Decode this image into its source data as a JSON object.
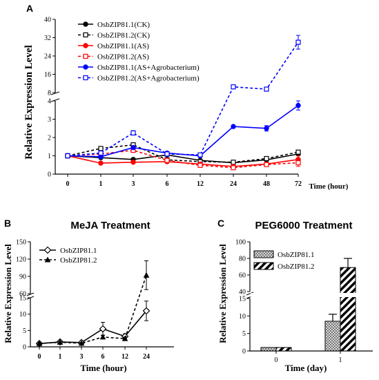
{
  "chart_data": [
    {
      "panel_label": "A",
      "type": "line",
      "title": "",
      "xlabel": "Time (hour)",
      "ylabel": "Relative Expression Level",
      "categories": [
        "0",
        "1",
        "3",
        "6",
        "12",
        "24",
        "48",
        "72"
      ],
      "yticks_lower": [
        "0",
        "1",
        "2",
        "3",
        "4"
      ],
      "yticks_upper": [
        "8",
        "16",
        "24",
        "32",
        "40"
      ],
      "y_axis_break": {
        "lower": [
          0,
          4
        ],
        "upper": [
          8,
          40
        ]
      },
      "legend_position": "top-left",
      "grid": false,
      "series": [
        {
          "name": "OsbZIP81.1(CK)",
          "color": "#000000",
          "dash": false,
          "marker": "filled-circle",
          "values": [
            1.0,
            0.9,
            0.8,
            1.05,
            0.75,
            0.62,
            0.78,
            1.1
          ],
          "errors": [
            0.1,
            0.06,
            0.05,
            0.06,
            0.05,
            0.05,
            0.05,
            0.07
          ]
        },
        {
          "name": "OsbZIP81.2(CK)",
          "color": "#000000",
          "dash": true,
          "marker": "open-square",
          "values": [
            1.0,
            1.4,
            1.6,
            0.78,
            0.68,
            0.65,
            0.85,
            1.2
          ],
          "errors": [
            0.1,
            0.08,
            0.1,
            0.07,
            0.05,
            0.05,
            0.06,
            0.07
          ]
        },
        {
          "name": "OsbZIP81.1(AS)",
          "color": "#ff0000",
          "dash": false,
          "marker": "filled-circle",
          "values": [
            1.0,
            0.6,
            0.65,
            0.68,
            0.55,
            0.42,
            0.55,
            0.8
          ],
          "errors": [
            0.1,
            0.05,
            0.05,
            0.05,
            0.06,
            0.08,
            0.1,
            0.2
          ]
        },
        {
          "name": "OsbZIP81.2(AS)",
          "color": "#ff0000",
          "dash": true,
          "marker": "open-square",
          "values": [
            1.0,
            1.1,
            1.3,
            0.75,
            0.48,
            0.35,
            0.52,
            0.62
          ],
          "errors": [
            0.1,
            0.1,
            0.1,
            0.08,
            0.05,
            0.05,
            0.08,
            0.2
          ]
        },
        {
          "name": "OsbZIP81.1(AS+Agrobacterium)",
          "color": "#0000ff",
          "dash": false,
          "marker": "filled-circle",
          "values": [
            1.0,
            0.95,
            1.45,
            1.15,
            1.0,
            2.6,
            2.5,
            3.75
          ],
          "errors": [
            0.12,
            0.1,
            0.1,
            0.08,
            0.08,
            0.05,
            0.15,
            0.25
          ]
        },
        {
          "name": "OsbZIP81.2(AS+Agrobacterium)",
          "color": "#0000ff",
          "dash": true,
          "marker": "open-square",
          "values": [
            1.0,
            1.15,
            2.25,
            1.1,
            1.05,
            10.5,
            9.5,
            30.0
          ],
          "errors": [
            0.1,
            0.1,
            0.12,
            0.08,
            0.05,
            0.4,
            0.5,
            3.0
          ]
        }
      ]
    },
    {
      "panel_label": "B",
      "type": "line",
      "title": "MeJA Treatment",
      "xlabel": "Time (hour)",
      "ylabel": "Relative Expression Level",
      "categories": [
        "0",
        "1",
        "3",
        "6",
        "12",
        "24"
      ],
      "yticks_lower": [
        "0",
        "5",
        "10",
        "15"
      ],
      "yticks_upper": [
        "60",
        "90",
        "120",
        "150"
      ],
      "y_axis_break": {
        "lower": [
          0,
          15
        ],
        "upper": [
          60,
          150
        ]
      },
      "legend_position": "top-left",
      "grid": false,
      "series": [
        {
          "name": "OsbZIP81.1",
          "color": "#000000",
          "dash": false,
          "marker": "open-diamond",
          "values": [
            1.0,
            1.5,
            1.3,
            5.5,
            3.2,
            11.0
          ],
          "errors": [
            0.2,
            0.2,
            0.2,
            2.0,
            0.8,
            3.0
          ]
        },
        {
          "name": "OsbZIP81.2",
          "color": "#000000",
          "dash": true,
          "marker": "filled-triangle",
          "values": [
            1.0,
            1.4,
            1.1,
            3.0,
            2.5,
            92.0
          ],
          "errors": [
            0.2,
            0.2,
            0.2,
            0.6,
            0.5,
            25.0
          ]
        }
      ]
    },
    {
      "panel_label": "C",
      "type": "bar",
      "title": "PEG6000 Treatment",
      "xlabel": "Time (day)",
      "ylabel": "Relative Expression Level",
      "categories": [
        "0",
        "1"
      ],
      "yticks_lower": [
        "0",
        "5",
        "10",
        "15"
      ],
      "yticks_upper": [
        "40",
        "60",
        "80",
        "100"
      ],
      "y_axis_break": {
        "lower": [
          0,
          15
        ],
        "upper": [
          40,
          100
        ]
      },
      "legend_position": "top-left",
      "grid": false,
      "series": [
        {
          "name": "OsbZIP81.1",
          "fill": "dotted",
          "values": [
            1.0,
            8.5
          ],
          "errors": [
            0,
            2.0
          ]
        },
        {
          "name": "OsbZIP81.2",
          "fill": "diagonal-stripes",
          "values": [
            1.0,
            69.0
          ],
          "errors": [
            0,
            11.0
          ]
        }
      ]
    }
  ]
}
